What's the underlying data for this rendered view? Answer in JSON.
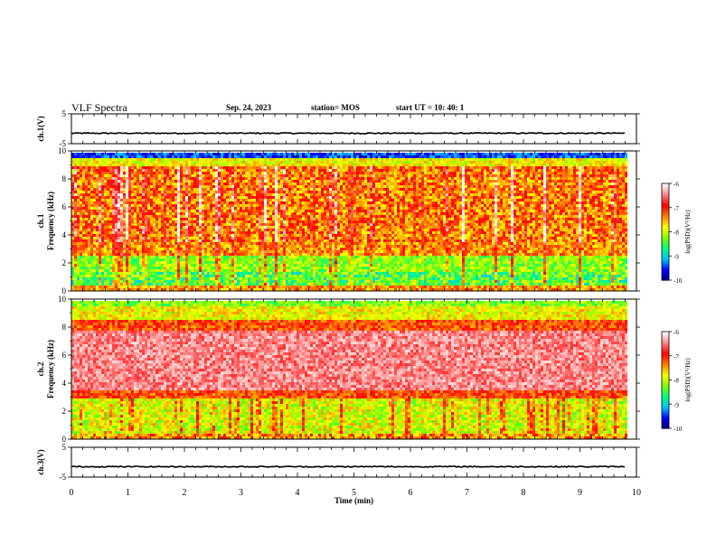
{
  "header": {
    "title": "VLF Spectra",
    "date": "Sep. 24, 2023",
    "station": "station= MOS",
    "start": "start  UT =   10: 40: 1"
  },
  "colors": {
    "colorscale": [
      "#00007a",
      "#0000ff",
      "#00c0ff",
      "#00ff80",
      "#80ff00",
      "#ffff00",
      "#ff8000",
      "#ff0000",
      "#ff8080",
      "#ffffff"
    ]
  },
  "chart_data": [
    {
      "type": "line",
      "panel": "ch1_waveform",
      "ylabel": "ch.1(V)",
      "ylim": [
        -5,
        5
      ],
      "yticks": [
        5,
        -5
      ],
      "xlim": [
        0,
        10
      ],
      "series": [
        {
          "x": [
            0,
            9.8
          ],
          "values": [
            -1.5,
            -1.5
          ]
        }
      ]
    },
    {
      "type": "heatmap",
      "panel": "ch1_spectrogram",
      "ylabel": "ch.1\nFrequency (kHz)",
      "ylim": [
        0,
        10
      ],
      "yticks": [
        0,
        2,
        4,
        6,
        8,
        10
      ],
      "xlim": [
        0,
        10
      ],
      "data_end_x": 9.8,
      "colorbar": {
        "label": "log(PSD)(V²/Hz)",
        "range": [
          -10,
          -6
        ],
        "ticks": [
          -6,
          -7,
          -8,
          -9,
          -10
        ]
      }
    },
    {
      "type": "heatmap",
      "panel": "ch2_spectrogram",
      "ylabel": "ch.2\nFrequency (kHz)",
      "ylim": [
        0,
        10
      ],
      "yticks": [
        0,
        2,
        4,
        6,
        8,
        10
      ],
      "xlim": [
        0,
        10
      ],
      "data_end_x": 9.8,
      "colorbar": {
        "label": "log(PSD)(V²/Hz)",
        "range": [
          -10,
          -6
        ],
        "ticks": [
          -6,
          -7,
          -8,
          -9,
          -10
        ]
      }
    },
    {
      "type": "line",
      "panel": "ch3_waveform",
      "ylabel": "ch.3(V)",
      "ylim": [
        -5,
        5
      ],
      "yticks": [
        5,
        -5
      ],
      "xlim": [
        0,
        10
      ],
      "series": [
        {
          "x": [
            0,
            9.8
          ],
          "values": [
            -1.5,
            -1.5
          ]
        }
      ]
    }
  ],
  "xaxis": {
    "label": "Time (min)",
    "ticks": [
      "0",
      "1",
      "2",
      "3",
      "4",
      "5",
      "6",
      "7",
      "8",
      "9",
      "10"
    ]
  }
}
